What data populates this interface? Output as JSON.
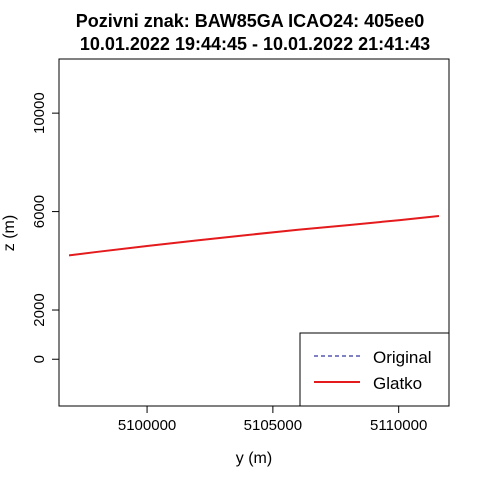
{
  "chart_data": {
    "type": "line",
    "title": "Pozivni znak: BAW85GA  ICAO24: 405ee0",
    "subtitle": "10.01.2022 19:44:45 - 10.01.2022 21:41:43",
    "xlabel": "y (m)",
    "ylabel": "z (m)",
    "xlim": [
      5096500,
      5112000
    ],
    "ylim": [
      -1900,
      12200
    ],
    "x_ticks": [
      5100000,
      5105000,
      5110000
    ],
    "x_tick_labels": [
      "5100000",
      "5105000",
      "5110000"
    ],
    "y_ticks": [
      0,
      2000,
      6000,
      10000
    ],
    "y_tick_labels": [
      "0",
      "2000",
      "6000",
      "10000"
    ],
    "grid": false,
    "legend": {
      "position": "bottom-right",
      "entries": [
        "Original",
        "Glatko"
      ]
    },
    "series": [
      {
        "name": "Original",
        "color": "#00008b",
        "style": "dashed",
        "x": [
          5096900,
          5098000,
          5100000,
          5102000,
          5104000,
          5106000,
          5108000,
          5110000,
          5111600
        ],
        "y": [
          4220,
          4360,
          4600,
          4830,
          5050,
          5260,
          5450,
          5650,
          5820
        ]
      },
      {
        "name": "Glatko",
        "color": "#e41a1c",
        "style": "solid",
        "x": [
          5096900,
          5098000,
          5100000,
          5102000,
          5104000,
          5106000,
          5108000,
          5110000,
          5111600
        ],
        "y": [
          4220,
          4360,
          4600,
          4830,
          5050,
          5260,
          5450,
          5650,
          5820
        ]
      }
    ]
  }
}
